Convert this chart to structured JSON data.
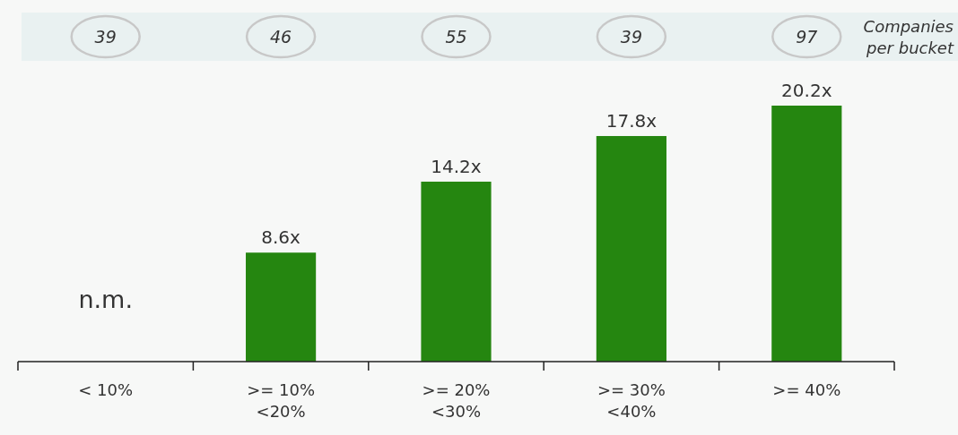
{
  "chart_data": {
    "type": "bar",
    "categories": [
      "< 10%",
      ">= 10%\n<20%",
      ">= 20%\n<30%",
      ">= 30%\n<40%",
      ">= 40%"
    ],
    "values": [
      null,
      8.6,
      14.2,
      17.8,
      20.2
    ],
    "value_labels": [
      "n.m.",
      "8.6x",
      "14.2x",
      "17.8x",
      "20.2x"
    ],
    "color": "#258610",
    "annotations": [
      "39",
      "46",
      "55",
      "39",
      "97",
      "Companies per bucket"
    ]
  }
}
